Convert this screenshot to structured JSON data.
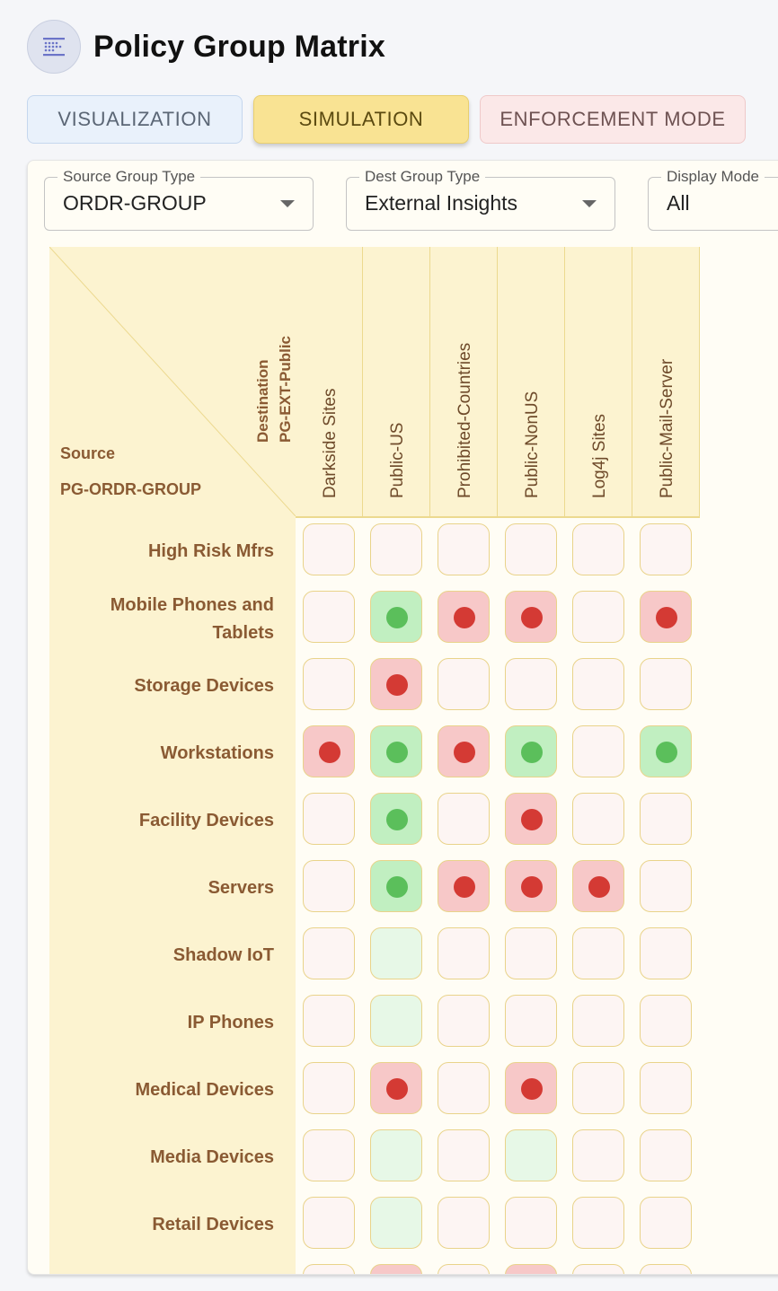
{
  "header": {
    "title": "Policy Group Matrix",
    "icon": "matrix-grid-icon"
  },
  "tabs": {
    "visualization": "VISUALIZATION",
    "simulation": "SIMULATION",
    "enforcement": "ENFORCEMENT MODE",
    "active": "simulation"
  },
  "filters": {
    "source_group_type": {
      "label": "Source Group Type",
      "value": "ORDR-GROUP"
    },
    "dest_group_type": {
      "label": "Dest Group Type",
      "value": "External Insights"
    },
    "display_mode": {
      "label": "Display Mode",
      "value": "All"
    }
  },
  "matrix": {
    "destination_title": "Destination",
    "destination_group": "PG-EXT-Public",
    "source_title": "Source",
    "source_group": "PG-ORDR-GROUP",
    "columns": [
      "Darkside Sites",
      "Public-US",
      "Prohibited-Countries",
      "Public-NonUS",
      "Log4j Sites",
      "Public-Mail-Server"
    ],
    "rows": [
      {
        "label": "High Risk Mfrs",
        "cells": [
          "none",
          "none",
          "none",
          "none",
          "none",
          "none"
        ]
      },
      {
        "label": "Mobile Phones and Tablets",
        "cells": [
          "none",
          "allow",
          "deny",
          "deny",
          "none",
          "deny"
        ]
      },
      {
        "label": "Storage Devices",
        "cells": [
          "none",
          "deny",
          "none",
          "none",
          "none",
          "none"
        ]
      },
      {
        "label": "Workstations",
        "cells": [
          "deny",
          "allow",
          "deny",
          "allow",
          "none",
          "allow"
        ]
      },
      {
        "label": "Facility Devices",
        "cells": [
          "none",
          "allow",
          "none",
          "deny",
          "none",
          "none"
        ]
      },
      {
        "label": "Servers",
        "cells": [
          "none",
          "allow",
          "deny",
          "deny",
          "deny",
          "none"
        ]
      },
      {
        "label": "Shadow IoT",
        "cells": [
          "none",
          "light",
          "none",
          "none",
          "none",
          "none"
        ]
      },
      {
        "label": "IP Phones",
        "cells": [
          "none",
          "light",
          "none",
          "none",
          "none",
          "none"
        ]
      },
      {
        "label": "Medical Devices",
        "cells": [
          "none",
          "deny",
          "none",
          "deny",
          "none",
          "none"
        ]
      },
      {
        "label": "Media Devices",
        "cells": [
          "none",
          "light",
          "none",
          "light",
          "none",
          "none"
        ]
      },
      {
        "label": "Retail Devices",
        "cells": [
          "none",
          "light",
          "none",
          "none",
          "none",
          "none"
        ]
      },
      {
        "label": "",
        "cells": [
          "none",
          "deny",
          "none",
          "deny",
          "none",
          "none"
        ]
      }
    ]
  },
  "colors": {
    "allow_bg": "#c1efc1",
    "allow_dot": "#5bbf5b",
    "deny_bg": "#f7c8c8",
    "deny_dot": "#d43a34",
    "header_bg": "#fcf3d0",
    "label_color": "#8a5a33"
  }
}
